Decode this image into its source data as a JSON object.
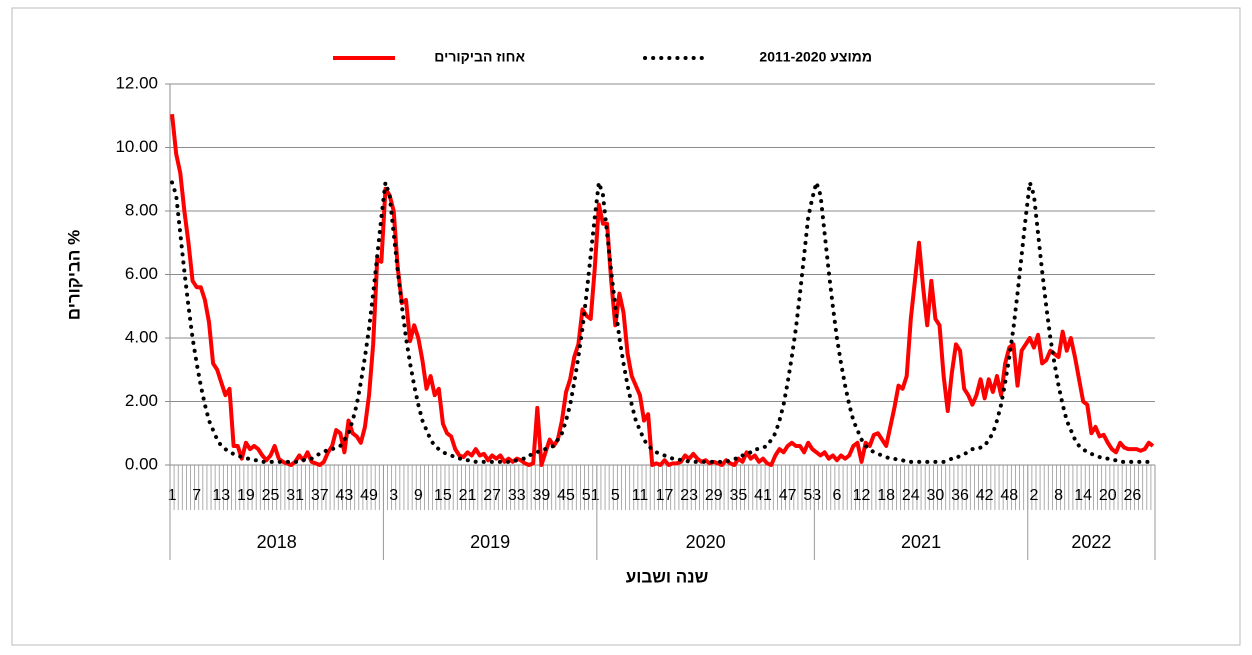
{
  "chart_data": {
    "type": "line",
    "x_label": "שנה ושבוע",
    "y_label": "% הביקורים",
    "legend": "top",
    "grid": true,
    "ylim": [
      0,
      12
    ],
    "yticks": [
      {
        "value": 0,
        "label": "0.00"
      },
      {
        "value": 2,
        "label": "2.00"
      },
      {
        "value": 4,
        "label": "4.00"
      },
      {
        "value": 6,
        "label": "6.00"
      },
      {
        "value": 8,
        "label": "8.00"
      },
      {
        "value": 10,
        "label": "10.00"
      },
      {
        "value": 12,
        "label": "12.00"
      }
    ],
    "x_groups": [
      {
        "label": "2018",
        "weeks": 52
      },
      {
        "label": "2019",
        "weeks": 52
      },
      {
        "label": "2020",
        "weeks": 53
      },
      {
        "label": "2021",
        "weeks": 52
      },
      {
        "label": "2022",
        "weeks": 31
      }
    ],
    "categories": [
      "1",
      null,
      null,
      null,
      null,
      null,
      "7",
      null,
      null,
      null,
      null,
      null,
      "13",
      null,
      null,
      null,
      null,
      null,
      "19",
      null,
      null,
      null,
      null,
      null,
      "25",
      null,
      null,
      null,
      null,
      null,
      "31",
      null,
      null,
      null,
      null,
      null,
      "37",
      null,
      null,
      null,
      null,
      null,
      "43",
      null,
      null,
      null,
      null,
      null,
      "49",
      null,
      null,
      null,
      null,
      null,
      "3",
      null,
      null,
      null,
      null,
      null,
      "9",
      null,
      null,
      null,
      null,
      null,
      "15",
      null,
      null,
      null,
      null,
      null,
      "21",
      null,
      null,
      null,
      null,
      null,
      "27",
      null,
      null,
      null,
      null,
      null,
      "33",
      null,
      null,
      null,
      null,
      null,
      "39",
      null,
      null,
      null,
      null,
      null,
      "45",
      null,
      null,
      null,
      null,
      null,
      "51",
      null,
      null,
      null,
      null,
      null,
      "5",
      null,
      null,
      null,
      null,
      null,
      "11",
      null,
      null,
      null,
      null,
      null,
      "17",
      null,
      null,
      null,
      null,
      null,
      "23",
      null,
      null,
      null,
      null,
      null,
      "29",
      null,
      null,
      null,
      null,
      null,
      "35",
      null,
      null,
      null,
      null,
      null,
      "41",
      null,
      null,
      null,
      null,
      null,
      "47",
      null,
      null,
      null,
      null,
      null,
      "53",
      null,
      null,
      null,
      null,
      null,
      "6",
      null,
      null,
      null,
      null,
      null,
      "12",
      null,
      null,
      null,
      null,
      null,
      "18",
      null,
      null,
      null,
      null,
      null,
      "24",
      null,
      null,
      null,
      null,
      null,
      "30",
      null,
      null,
      null,
      null,
      null,
      "36",
      null,
      null,
      null,
      null,
      null,
      "42",
      null,
      null,
      null,
      null,
      null,
      "48",
      null,
      null,
      null,
      null,
      null,
      "2",
      null,
      null,
      null,
      null,
      null,
      "8",
      null,
      null,
      null,
      null,
      null,
      "14",
      null,
      null,
      null,
      null,
      null,
      "20",
      null,
      null,
      null,
      null,
      null,
      "26",
      null,
      null,
      null,
      null,
      null
    ],
    "series": [
      {
        "name": "אחוז הביקורים",
        "color": "#ff0000",
        "dash": "solid",
        "values": [
          11.05,
          9.8,
          9.2,
          8.0,
          7.0,
          5.8,
          5.6,
          5.6,
          5.2,
          4.5,
          3.2,
          3.0,
          2.6,
          2.2,
          2.4,
          0.6,
          0.6,
          0.2,
          0.7,
          0.5,
          0.6,
          0.5,
          0.3,
          0.15,
          0.3,
          0.6,
          0.2,
          0.1,
          0.05,
          0.0,
          0.1,
          0.3,
          0.15,
          0.4,
          0.1,
          0.05,
          0.0,
          0.1,
          0.4,
          0.6,
          1.1,
          1.0,
          0.4,
          1.4,
          1.0,
          0.9,
          0.7,
          1.2,
          2.2,
          3.8,
          6.5,
          6.4,
          8.7,
          8.5,
          8.0,
          6.2,
          5.1,
          5.2,
          3.9,
          4.4,
          4.0,
          3.3,
          2.4,
          2.8,
          2.2,
          2.4,
          1.3,
          1.0,
          0.9,
          0.5,
          0.3,
          0.25,
          0.4,
          0.3,
          0.5,
          0.3,
          0.35,
          0.15,
          0.3,
          0.2,
          0.3,
          0.1,
          0.2,
          0.1,
          0.2,
          0.15,
          0.05,
          0.0,
          0.05,
          1.8,
          0.0,
          0.4,
          0.8,
          0.6,
          0.8,
          1.4,
          2.3,
          2.7,
          3.4,
          3.8,
          4.9,
          4.7,
          4.6,
          6.2,
          8.2,
          7.6,
          7.6,
          5.8,
          4.4,
          5.4,
          4.8,
          3.5,
          2.8,
          2.5,
          2.2,
          1.4,
          1.6,
          0.0,
          0.05,
          0.0,
          0.15,
          0.0,
          0.05,
          0.05,
          0.1,
          0.3,
          0.2,
          0.35,
          0.2,
          0.1,
          0.15,
          0.05,
          0.1,
          0.05,
          0.0,
          0.15,
          0.05,
          0.0,
          0.2,
          0.1,
          0.4,
          0.2,
          0.3,
          0.1,
          0.2,
          0.05,
          0.0,
          0.3,
          0.5,
          0.4,
          0.6,
          0.7,
          0.6,
          0.6,
          0.4,
          0.7,
          0.5,
          0.4,
          0.3,
          0.4,
          0.2,
          0.3,
          0.15,
          0.3,
          0.2,
          0.3,
          0.6,
          0.7,
          0.1,
          0.7,
          0.6,
          0.95,
          1.0,
          0.8,
          0.6,
          1.2,
          1.8,
          2.5,
          2.4,
          2.8,
          4.6,
          5.8,
          7.0,
          5.6,
          4.4,
          5.8,
          4.6,
          4.4,
          2.8,
          1.7,
          2.9,
          3.8,
          3.6,
          2.4,
          2.2,
          1.9,
          2.2,
          2.7,
          2.1,
          2.7,
          2.3,
          2.8,
          2.2,
          3.2,
          3.7,
          3.8,
          2.5,
          3.6,
          3.8,
          4.0,
          3.7,
          4.1,
          3.2,
          3.3,
          3.6,
          3.5,
          3.4,
          4.2,
          3.6,
          4.0,
          3.4,
          2.7,
          2.0,
          1.9,
          1.0,
          1.2,
          0.9,
          0.95,
          0.7,
          0.5,
          0.4,
          0.7,
          0.55,
          0.5,
          0.5,
          0.5,
          0.45,
          0.5,
          0.7,
          0.6
        ]
      },
      {
        "name": "ממוצע 2011-2020",
        "color": "#000000",
        "dash": "dotted",
        "values": [
          8.9,
          8.5,
          7.3,
          6.1,
          5.0,
          4.0,
          3.2,
          2.5,
          1.9,
          1.4,
          1.1,
          0.8,
          0.6,
          0.5,
          0.4,
          0.35,
          0.3,
          0.25,
          0.2,
          0.2,
          0.15,
          0.15,
          0.1,
          0.1,
          0.1,
          0.1,
          0.1,
          0.1,
          0.1,
          0.1,
          0.1,
          0.1,
          0.15,
          0.2,
          0.2,
          0.3,
          0.35,
          0.4,
          0.5,
          0.5,
          0.55,
          0.6,
          0.8,
          1.0,
          1.4,
          1.9,
          2.6,
          3.4,
          4.3,
          5.4,
          6.6,
          7.8,
          8.9,
          8.5,
          7.3,
          6.1,
          5.0,
          4.0,
          3.2,
          2.5,
          1.9,
          1.4,
          1.1,
          0.8,
          0.6,
          0.5,
          0.4,
          0.35,
          0.3,
          0.25,
          0.2,
          0.2,
          0.15,
          0.15,
          0.1,
          0.1,
          0.1,
          0.1,
          0.1,
          0.1,
          0.1,
          0.1,
          0.1,
          0.1,
          0.15,
          0.2,
          0.2,
          0.3,
          0.35,
          0.4,
          0.5,
          0.5,
          0.55,
          0.6,
          0.8,
          1.0,
          1.4,
          1.9,
          2.6,
          3.4,
          4.3,
          5.4,
          6.6,
          7.8,
          8.9,
          8.5,
          7.3,
          6.1,
          5.0,
          4.0,
          3.2,
          2.5,
          1.9,
          1.4,
          1.1,
          0.8,
          0.6,
          0.5,
          0.4,
          0.35,
          0.3,
          0.25,
          0.2,
          0.2,
          0.15,
          0.15,
          0.1,
          0.1,
          0.1,
          0.1,
          0.1,
          0.1,
          0.1,
          0.1,
          0.1,
          0.1,
          0.15,
          0.2,
          0.2,
          0.3,
          0.35,
          0.4,
          0.5,
          0.5,
          0.55,
          0.6,
          0.8,
          1.0,
          1.4,
          1.9,
          2.6,
          3.4,
          4.3,
          5.4,
          6.6,
          7.8,
          8.4,
          8.9,
          8.5,
          7.3,
          6.1,
          5.0,
          4.0,
          3.2,
          2.5,
          1.9,
          1.4,
          1.1,
          0.8,
          0.6,
          0.5,
          0.4,
          0.35,
          0.3,
          0.25,
          0.2,
          0.2,
          0.15,
          0.15,
          0.1,
          0.1,
          0.1,
          0.1,
          0.1,
          0.1,
          0.1,
          0.1,
          0.1,
          0.1,
          0.15,
          0.2,
          0.2,
          0.3,
          0.35,
          0.4,
          0.5,
          0.5,
          0.55,
          0.6,
          0.8,
          1.0,
          1.4,
          1.9,
          2.6,
          3.4,
          4.3,
          5.4,
          6.6,
          7.8,
          8.9,
          8.5,
          7.3,
          6.1,
          5.0,
          4.0,
          3.2,
          2.5,
          1.9,
          1.4,
          1.1,
          0.8,
          0.6,
          0.5,
          0.4,
          0.35,
          0.3,
          0.25,
          0.2,
          0.2,
          0.15,
          0.15,
          0.1,
          0.1,
          0.1,
          0.1,
          0.1,
          0.1,
          0.1,
          0.1,
          0.1
        ]
      }
    ]
  }
}
